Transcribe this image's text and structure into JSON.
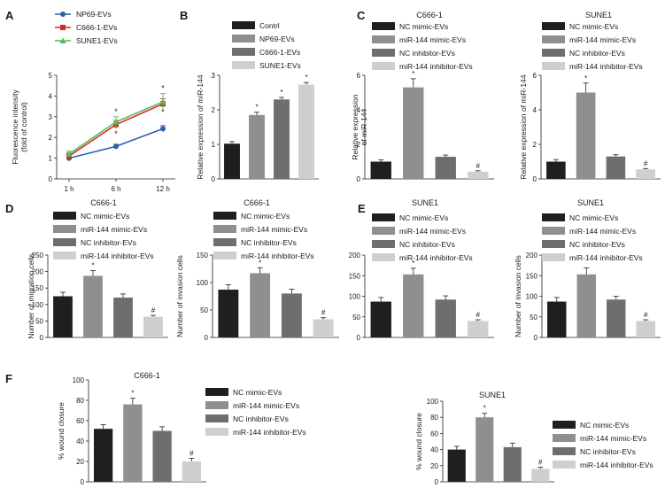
{
  "colors": {
    "black": "#1f1f1f",
    "mid": "#8f8f8f",
    "dark": "#6e6e6e",
    "light": "#cfcfcf",
    "blue": "#2f5fae",
    "red": "#d22a2a",
    "green": "#4fbf4f"
  },
  "chart_data": [
    {
      "panel": "A",
      "type": "line",
      "x": [
        "1 h",
        "6 h",
        "12 h"
      ],
      "ylabel": [
        "Fluorescence intensity",
        "(fold of control)"
      ],
      "ylim": [
        0,
        5
      ],
      "yticks": [
        0,
        1,
        2,
        3,
        4,
        5
      ],
      "series": [
        {
          "name": "NP69-EVs",
          "values": [
            1.0,
            1.57,
            2.42
          ],
          "errors": [
            0.1,
            0.1,
            0.15
          ],
          "stars": [
            "",
            "",
            ""
          ],
          "color": "blue",
          "marker": "circle"
        },
        {
          "name": "C666-1-EVs",
          "values": [
            1.1,
            2.62,
            3.62
          ],
          "errors": [
            0.15,
            0.2,
            0.25
          ],
          "stars": [
            "",
            "*",
            "*"
          ],
          "color": "red",
          "marker": "square"
        },
        {
          "name": "SUNE1-EVs",
          "values": [
            1.2,
            2.75,
            3.72
          ],
          "errors": [
            0.15,
            0.25,
            0.4
          ],
          "stars": [
            "",
            "*",
            "*"
          ],
          "color": "green",
          "marker": "triangle"
        }
      ]
    },
    {
      "panel": "B",
      "type": "bar",
      "categories": [
        "Contrl",
        "NP69-EVs",
        "C666-1-EVs",
        "SUNE1-EVs"
      ],
      "values": [
        1.02,
        1.85,
        2.3,
        2.73
      ],
      "errors": [
        0.06,
        0.08,
        0.06,
        0.06
      ],
      "stars": [
        "",
        "*",
        "*",
        "*"
      ],
      "ylabel": [
        "Relative expression of miR-144"
      ],
      "ylim": [
        0,
        3
      ],
      "yticks": [
        0,
        1,
        2,
        3
      ]
    },
    {
      "panel": "C",
      "type": "bar",
      "title": "C666-1",
      "categories": [
        "NC mimic-EVs",
        "miR-144 mimic-EVs",
        "NC inhibitor-EVs",
        "miR-144 inhibitor-EVs"
      ],
      "values": [
        1.0,
        5.3,
        1.28,
        0.42
      ],
      "errors": [
        0.1,
        0.5,
        0.1,
        0.05
      ],
      "stars": [
        "",
        "*",
        "",
        "#"
      ],
      "ylabel": [
        "Relative expression",
        "of miR-144"
      ],
      "ylim": [
        0,
        6
      ],
      "yticks": [
        0,
        2,
        4,
        6
      ]
    },
    {
      "panel": "",
      "type": "bar",
      "title": "SUNE1",
      "categories": [
        "NC mimic-EVs",
        "miR-144 mimic-EVs",
        "NC inhibitor-EVs",
        "miR-144 inhibitor-EVs"
      ],
      "values": [
        1.0,
        5.0,
        1.3,
        0.55
      ],
      "errors": [
        0.12,
        0.55,
        0.1,
        0.05
      ],
      "stars": [
        "",
        "*",
        "",
        "#"
      ],
      "ylabel": [
        "Relative expression of miR-144"
      ],
      "ylim": [
        0,
        6
      ],
      "yticks": [
        0,
        2,
        4,
        6
      ]
    },
    {
      "panel": "D",
      "type": "bar",
      "title": "C666-1",
      "categories": [
        "NC mimic-EVs",
        "miR-144 mimic-EVs",
        "NC inhibitor-EVs",
        "miR-144 inhibitor-EVs"
      ],
      "values": [
        125,
        187,
        121,
        63
      ],
      "errors": [
        12,
        16,
        11,
        4
      ],
      "stars": [
        "",
        "*",
        "",
        "#"
      ],
      "ylabel": [
        "Number of migration cells"
      ],
      "ylim": [
        0,
        250
      ],
      "yticks": [
        0,
        50,
        100,
        150,
        200,
        250
      ]
    },
    {
      "panel": "",
      "type": "bar",
      "title": "C666-1",
      "categories": [
        "NC mimic-EVs",
        "miR-144 mimic-EVs",
        "NC inhibitor-EVs",
        "miR-144 inhibitor-EVs"
      ],
      "values": [
        87,
        117,
        80,
        33
      ],
      "errors": [
        9,
        10,
        8,
        3
      ],
      "stars": [
        "",
        "*",
        "",
        "#"
      ],
      "ylabel": [
        "Number of invasion cells"
      ],
      "ylim": [
        0,
        150
      ],
      "yticks": [
        0,
        50,
        100,
        150
      ]
    },
    {
      "panel": "E",
      "type": "bar",
      "title": "SUNE1",
      "categories": [
        "NC mimic-EVs",
        "miR-144 mimic-EVs",
        "NC inhibitor-EVs",
        "miR-144 inhibitor-EVs"
      ],
      "values": [
        87,
        153,
        92,
        40
      ],
      "errors": [
        10,
        15,
        9,
        3
      ],
      "stars": [
        "",
        "*",
        "",
        "#"
      ],
      "ylabel": [],
      "ylim": [
        0,
        200
      ],
      "yticks": [
        0,
        50,
        100,
        150,
        200
      ]
    },
    {
      "panel": "",
      "type": "bar",
      "title": "SUNE1",
      "categories": [
        "NC mimic-EVs",
        "miR-144 mimic-EVs",
        "NC inhibitor-EVs",
        "miR-144 inhibitor-EVs"
      ],
      "values": [
        87,
        153,
        92,
        40
      ],
      "errors": [
        10,
        16,
        8,
        3
      ],
      "stars": [
        "",
        "",
        "",
        "#"
      ],
      "ylabel": [
        "Number of invasion cells"
      ],
      "ylim": [
        0,
        200
      ],
      "yticks": [
        0,
        50,
        100,
        150,
        200
      ]
    },
    {
      "panel": "F",
      "type": "bar",
      "title": "C666-1",
      "categories": [
        "NC mimic-EVs",
        "miR-144 mimic-EVs",
        "NC inhibitor-EVs",
        "miR-144 inhibitor-EVs"
      ],
      "values": [
        52,
        76,
        50,
        20
      ],
      "errors": [
        4,
        6,
        4,
        3
      ],
      "stars": [
        "",
        "*",
        "",
        "#"
      ],
      "ylabel": [
        "% wound closure"
      ],
      "ylim": [
        0,
        100
      ],
      "yticks": [
        0,
        20,
        40,
        60,
        80,
        100
      ]
    },
    {
      "panel": "",
      "type": "bar",
      "title": "SUNE1",
      "categories": [
        "NC mimic-EVs",
        "miR-144 mimic-EVs",
        "NC inhibitor-EVs",
        "miR-144 inhibitor-EVs"
      ],
      "values": [
        40,
        80,
        43,
        16
      ],
      "errors": [
        4,
        5,
        5,
        2
      ],
      "stars": [
        "",
        "*",
        "",
        "#"
      ],
      "ylabel": [
        "% wound closure"
      ],
      "ylim": [
        0,
        100
      ],
      "yticks": [
        0,
        20,
        40,
        60,
        80,
        100
      ]
    }
  ]
}
